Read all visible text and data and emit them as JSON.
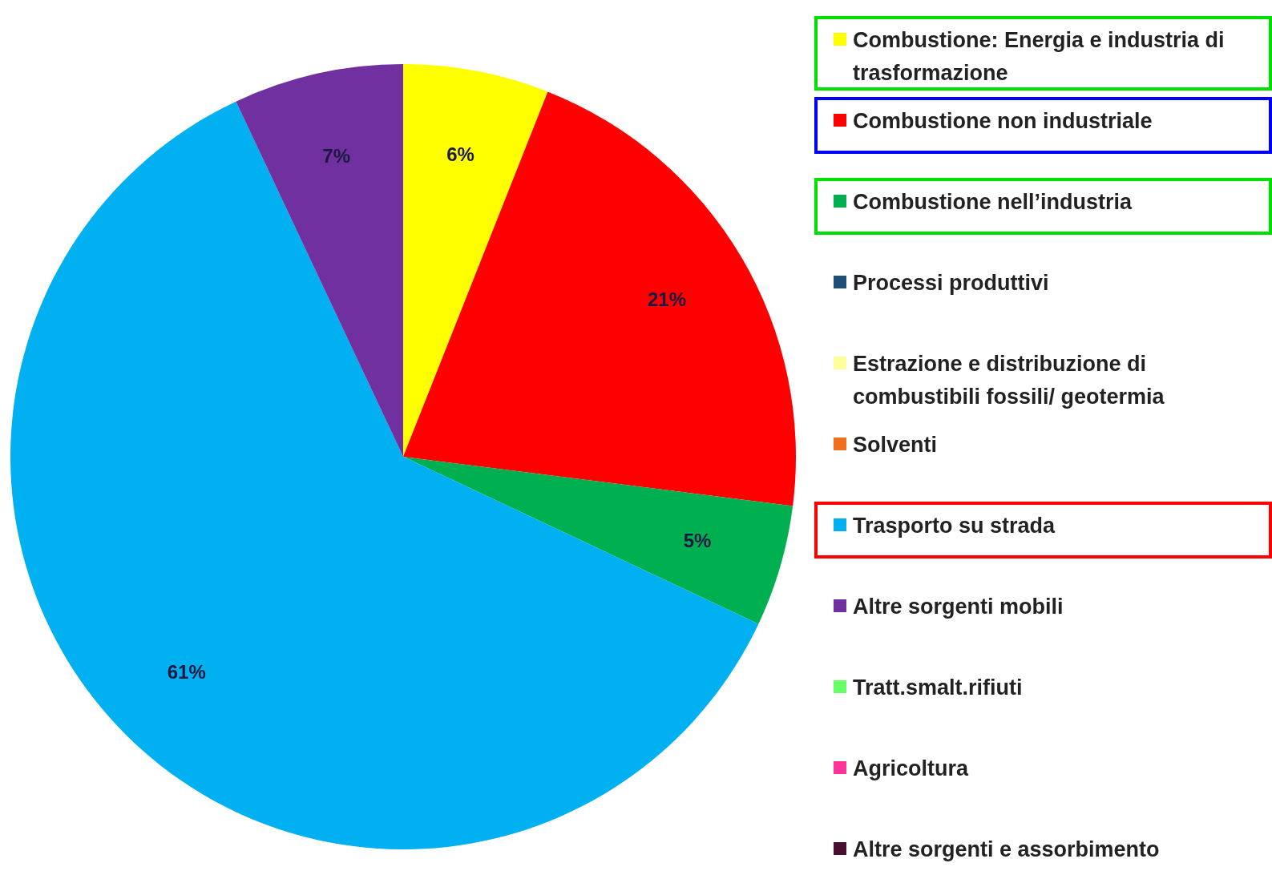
{
  "chart_data": {
    "type": "pie",
    "categories": [
      "Combustione: Energia e industria di trasformazione",
      "Combustione non industriale",
      "Combustione nell’industria",
      "Processi produttivi",
      "Estrazione e distribuzione di combustibili fossili/ geotermia",
      "Solventi",
      "Trasporto su strada",
      "Altre sorgenti mobili",
      "Tratt.smalt.rifiuti",
      "Agricoltura",
      "Altre sorgenti e assorbimento"
    ],
    "values": [
      6,
      21,
      5,
      0,
      0,
      0,
      61,
      7,
      0,
      0,
      0
    ],
    "colors": [
      "#ffff00",
      "#ff0000",
      "#00b050",
      "#1f4e79",
      "#ffff99",
      "#f07020",
      "#00b0f0",
      "#7030a0",
      "#66ff66",
      "#ff3399",
      "#4a0f2f"
    ],
    "value_labels": [
      "6%",
      "21%",
      "5%",
      null,
      null,
      null,
      "61%",
      "7%",
      null,
      null,
      null
    ],
    "legend": "right"
  }
}
